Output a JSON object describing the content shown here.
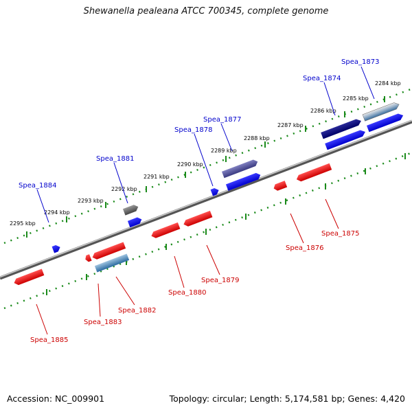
{
  "title": "Shewanella pealeana ATCC 700345, complete genome",
  "footer": {
    "accession": "Accession: NC_009901",
    "summary": "Topology: circular; Length: 5,174,581 bp; Genes: 4,420"
  },
  "scale_labels": [
    "2284 kbp",
    "2285 kbp",
    "2286 kbp",
    "2287 kbp",
    "2288 kbp",
    "2289 kbp",
    "2290 kbp",
    "2291 kbp",
    "2292 kbp",
    "2293 kbp",
    "2294 kbp",
    "2295 kbp"
  ],
  "colors": {
    "plus_strand": "#0000ee",
    "minus_strand": "#ee0000",
    "plus_label": "#0000cc",
    "minus_label": "#cc0000",
    "ticks": "#228822",
    "backbone": "#888888"
  },
  "genes": {
    "plus": [
      "Spea_1873",
      "Spea_1874",
      "Spea_1877",
      "Spea_1878",
      "Spea_1881",
      "Spea_1884"
    ],
    "minus": [
      "Spea_1875",
      "Spea_1876",
      "Spea_1879",
      "Spea_1880",
      "Spea_1882",
      "Spea_1883",
      "Spea_1885"
    ]
  }
}
